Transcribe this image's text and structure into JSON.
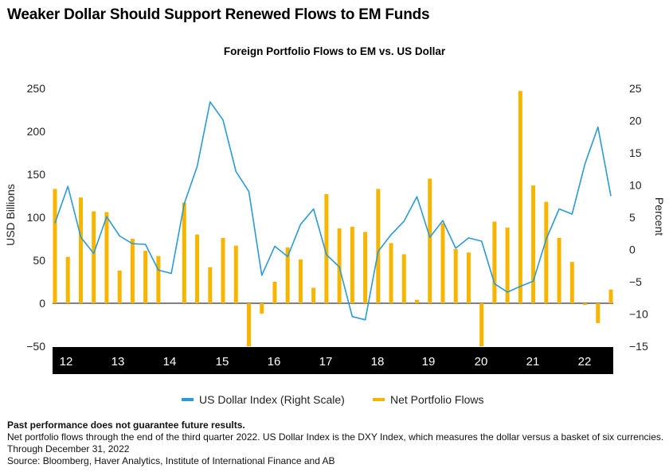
{
  "headline": "Weaker Dollar Should Support Renewed Flows to EM Funds",
  "chart_data": {
    "type": "bar+line",
    "title": "Foreign Portfolio Flows to EM vs. US Dollar",
    "ylabel_left": "USD Billions",
    "ylabel_right": "Percent",
    "ylim_left": [
      -50,
      250
    ],
    "yticks_left": [
      -50,
      0,
      50,
      100,
      150,
      200,
      250
    ],
    "ylim_right": [
      -15,
      25
    ],
    "yticks_right": [
      -15,
      -10,
      -5,
      0,
      5,
      10,
      15,
      20,
      25
    ],
    "x_labels": [
      "12",
      "13",
      "14",
      "15",
      "16",
      "17",
      "18",
      "19",
      "20",
      "21",
      "22"
    ],
    "legend_position": "bottom",
    "series": [
      {
        "name": "US Dollar Index (Right Scale)",
        "type": "line",
        "axis": "right",
        "color": "#2b9ad6",
        "values": [
          4.1,
          9.8,
          1.9,
          -0.6,
          5.1,
          2.1,
          0.9,
          0.8,
          -3.2,
          -3.7,
          7.1,
          12.9,
          22.9,
          20.1,
          12.1,
          9.0,
          -4.0,
          0.5,
          -1.1,
          3.9,
          6.3,
          -0.8,
          -2.7,
          -10.4,
          -10.9,
          -0.3,
          2.3,
          4.4,
          8.2,
          1.9,
          4.5,
          0.2,
          1.8,
          1.3,
          -5.3,
          -6.6,
          -5.7,
          -4.9,
          1.6,
          6.3,
          5.5,
          13.3,
          19.0,
          8.3
        ]
      },
      {
        "name": "Net Portfolio Flows",
        "type": "bar",
        "axis": "left",
        "color": "#f7b500",
        "values": [
          133,
          54,
          123,
          107,
          106,
          38,
          75,
          61,
          55,
          null,
          117,
          80,
          42,
          76,
          67,
          -50,
          -12,
          25,
          65,
          51,
          18,
          127,
          87,
          89,
          83,
          133,
          70,
          57,
          4,
          145,
          93,
          63,
          59,
          -50,
          95,
          88,
          247,
          137,
          118,
          76,
          48,
          -2,
          -23,
          16
        ]
      }
    ]
  },
  "legend": {
    "line_label": "US Dollar Index (Right Scale)",
    "bar_label": "Net Portfolio Flows",
    "line_color": "#2b9ad6",
    "bar_color": "#f7b500"
  },
  "notes": {
    "disclaimer": "Past performance does not guarantee future results.",
    "line1": "Net portfolio flows through the end of the third quarter 2022. US Dollar Index is the DXY Index, which measures the dollar versus a basket of six currencies.",
    "line2": "Through December 31, 2022",
    "source": "Source: Bloomberg, Haver Analytics, Institute of International Finance and AB"
  }
}
